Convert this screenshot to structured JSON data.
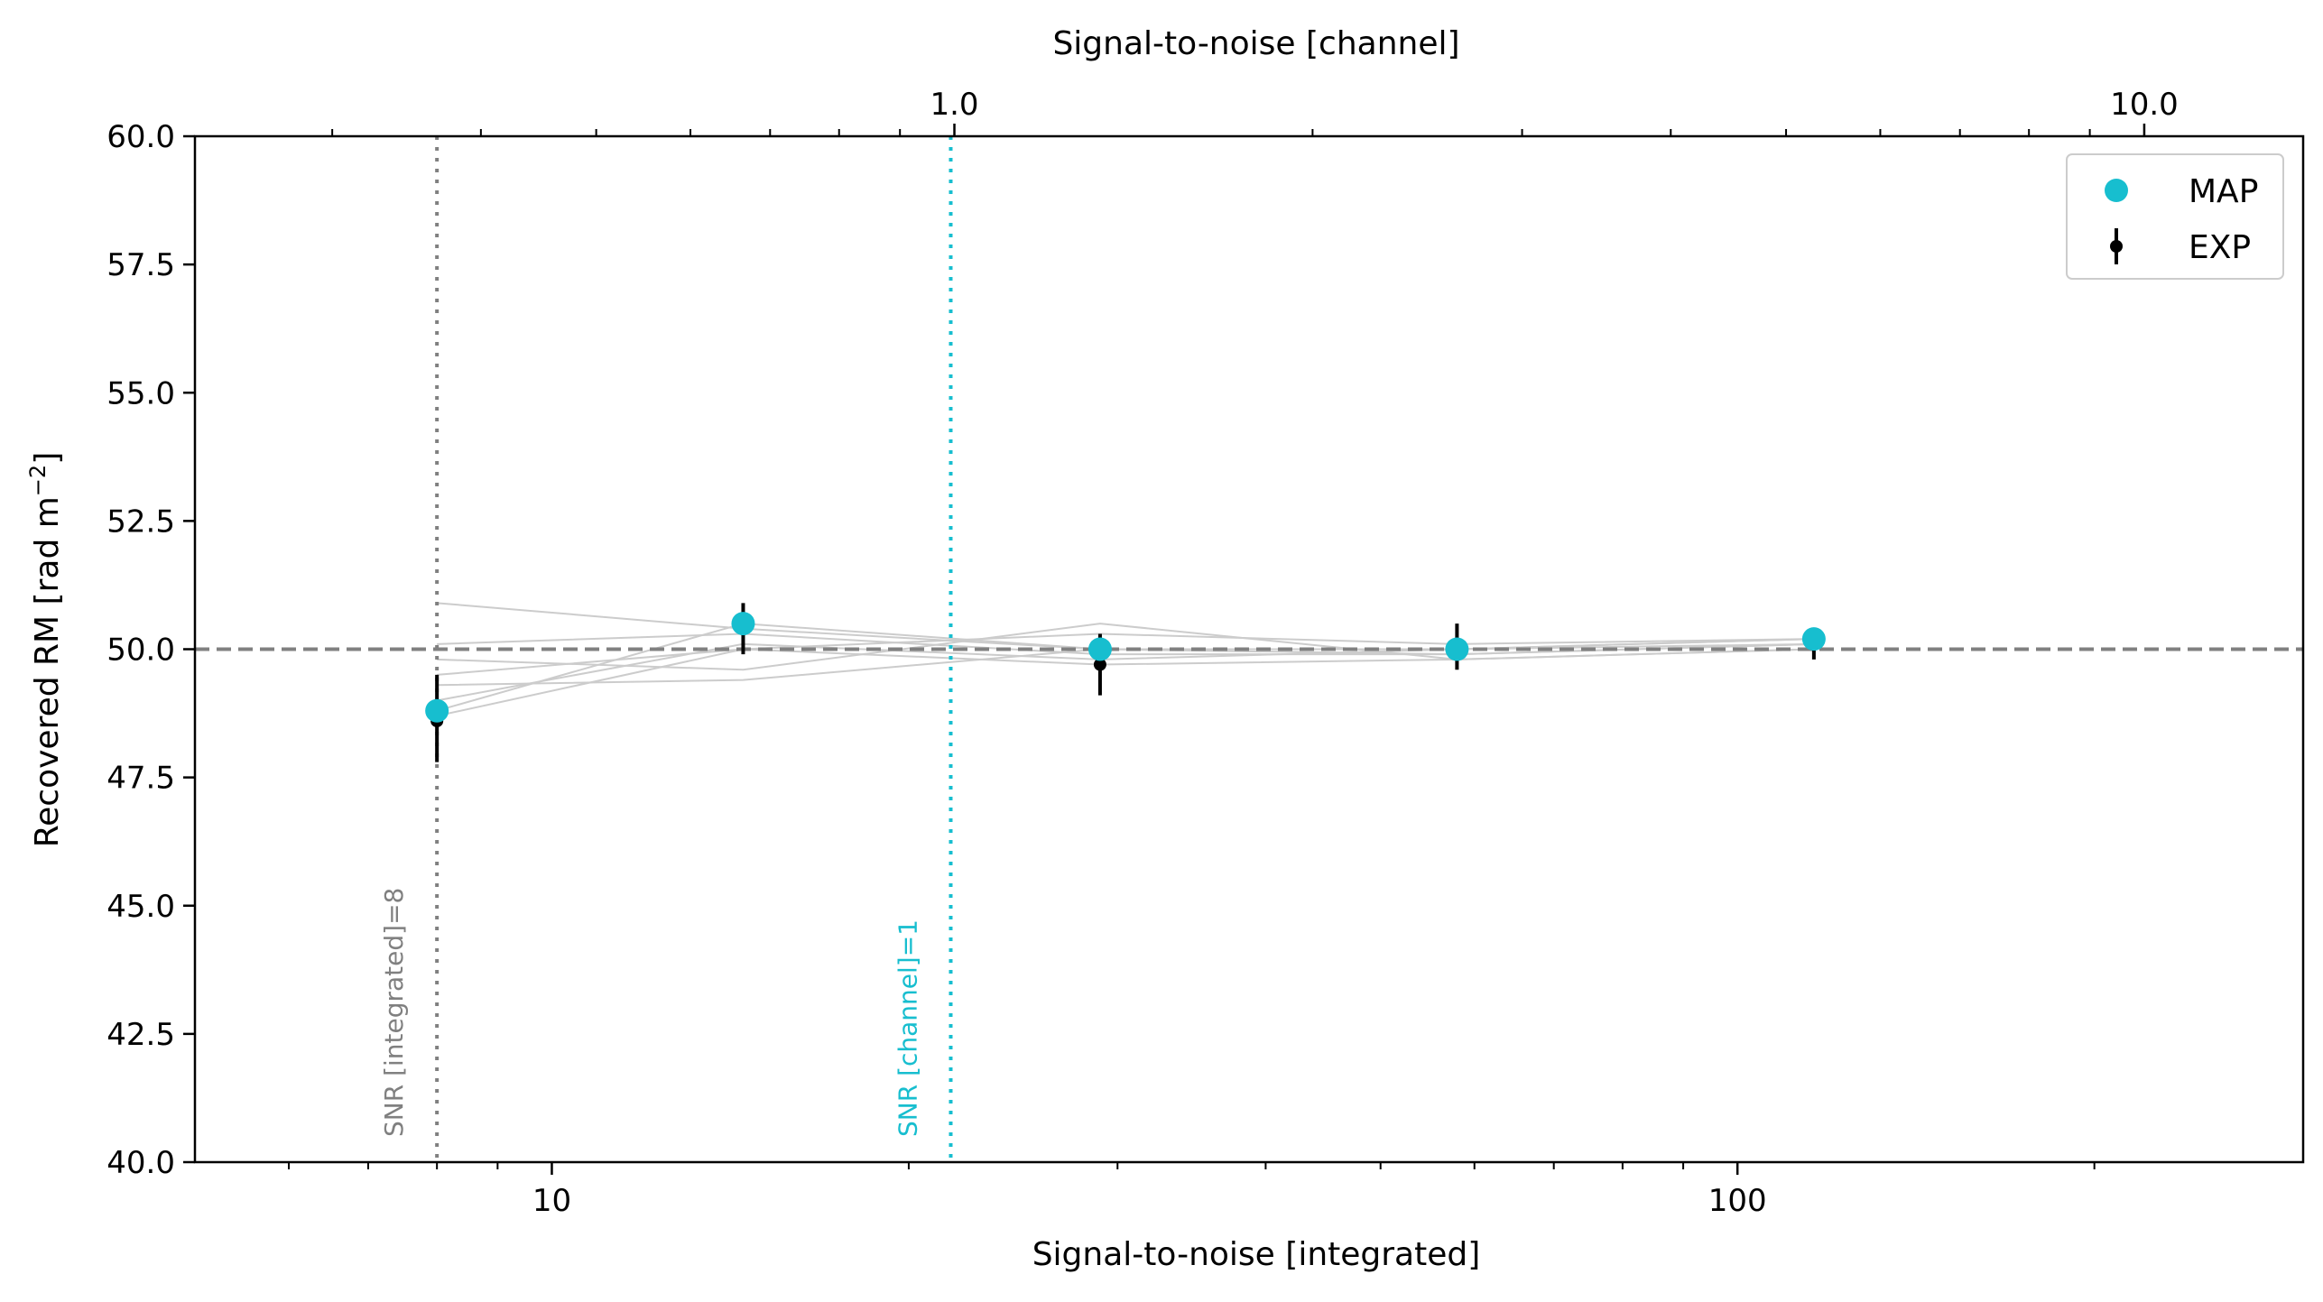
{
  "chart_data": {
    "type": "scatter",
    "xlabel": "Signal-to-noise [integrated]",
    "x2label": "Signal-to-noise [channel]",
    "ylabel": "Recovered RM [rad m",
    "ylabel_exp": "−2",
    "ylabel_end": "]",
    "xscale": "log",
    "xlim": [
      5,
      300
    ],
    "x2lim": [
      0.23,
      13.6
    ],
    "ylim": [
      40,
      60
    ],
    "x_ticks": [
      {
        "value": 10,
        "label": "10"
      },
      {
        "value": 100,
        "label": "100"
      }
    ],
    "x2_ticks": [
      {
        "value": 1.0,
        "label": "1.0"
      },
      {
        "value": 10.0,
        "label": "10.0"
      }
    ],
    "y_ticks": [
      {
        "value": 40.0,
        "label": "40.0"
      },
      {
        "value": 42.5,
        "label": "42.5"
      },
      {
        "value": 45.0,
        "label": "45.0"
      },
      {
        "value": 47.5,
        "label": "47.5"
      },
      {
        "value": 50.0,
        "label": "50.0"
      },
      {
        "value": 52.5,
        "label": "52.5"
      },
      {
        "value": 55.0,
        "label": "55.0"
      },
      {
        "value": 57.5,
        "label": "57.5"
      },
      {
        "value": 60.0,
        "label": "60.0"
      }
    ],
    "reference_line": {
      "y": 50.0,
      "color": "#808080",
      "style": "dashed"
    },
    "vertical_lines": [
      {
        "x": 8.0,
        "label": "SNR [integrated]=8",
        "color": "#808080"
      },
      {
        "x": 21.7,
        "label": "SNR [channel]=1",
        "color": "#17becf"
      }
    ],
    "series": [
      {
        "name": "MAP",
        "color": "#17becf",
        "marker": "circle",
        "x": [
          8.0,
          14.5,
          29.0,
          58.0,
          116.0
        ],
        "y": [
          48.8,
          50.5,
          50.0,
          50.0,
          50.2
        ]
      },
      {
        "name": "EXP",
        "color": "#000000",
        "marker": "errorbar",
        "x": [
          8.0,
          14.5,
          29.0,
          58.0,
          116.0
        ],
        "y": [
          48.6,
          50.4,
          49.7,
          50.0,
          50.1
        ],
        "y_low": [
          47.8,
          49.9,
          49.1,
          49.6,
          49.8
        ],
        "y_high": [
          49.5,
          50.9,
          50.3,
          50.5,
          50.4
        ]
      }
    ],
    "realizations": {
      "color": "#cccccc",
      "x": [
        8.0,
        14.5,
        29.0,
        58.0,
        116.0
      ],
      "runs": [
        [
          50.9,
          50.4,
          50.0,
          50.0,
          50.2
        ],
        [
          50.1,
          50.3,
          49.9,
          49.9,
          50.1
        ],
        [
          49.8,
          49.6,
          50.5,
          49.8,
          50.0
        ],
        [
          49.5,
          50.0,
          50.3,
          50.1,
          50.2
        ],
        [
          49.3,
          49.4,
          50.0,
          49.9,
          50.1
        ],
        [
          49.0,
          50.1,
          49.8,
          50.0,
          50.1
        ],
        [
          48.7,
          50.0,
          49.7,
          49.8,
          50.0
        ],
        [
          48.8,
          50.5,
          50.0,
          50.0,
          50.2
        ]
      ]
    },
    "legend": {
      "position": "top-right",
      "entries": [
        {
          "name": "MAP",
          "marker": "circle",
          "color": "#17becf"
        },
        {
          "name": "EXP",
          "marker": "errorbar",
          "color": "#000000"
        }
      ]
    }
  }
}
